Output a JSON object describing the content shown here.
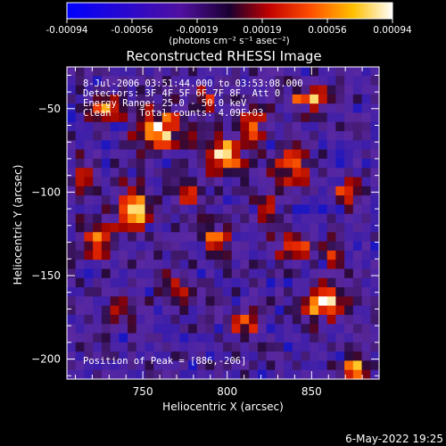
{
  "colorbar": {
    "tick_labels": [
      "-0.00094",
      "-0.00056",
      "-0.00019",
      "0.00019",
      "0.00056",
      "0.00094"
    ],
    "unit_label": "(photons cm⁻² s⁻¹ asec⁻²)",
    "range": [
      -0.00094,
      0.00094
    ]
  },
  "chart_data": {
    "type": "heatmap",
    "title": "Reconstructed RHESSI Image",
    "xlabel": "Heliocentric X (arcsec)",
    "ylabel": "Heliocentric Y (arcsec)",
    "xlim": [
      705,
      890
    ],
    "ylim": [
      -212,
      -25
    ],
    "xticks": [
      750,
      800,
      850
    ],
    "yticks": [
      -50,
      -100,
      -150,
      -200
    ],
    "annotations": [
      "8-Jul-2006 03:51:44.000 to 03:53:08.000",
      "Detectors: 3F 4F 5F 6F 7F 8F, Att 0",
      "Energy Range: 25.0 - 50.0 keV",
      "Clean     Total counts: 4.09E+03",
      "Position of Peak = [886,-206]"
    ],
    "peak": [
      886,
      -206
    ],
    "grid": false,
    "colormap": "blue-purple-red-yellow-white"
  },
  "footer": {
    "date": "6-May-2022 19:25"
  }
}
